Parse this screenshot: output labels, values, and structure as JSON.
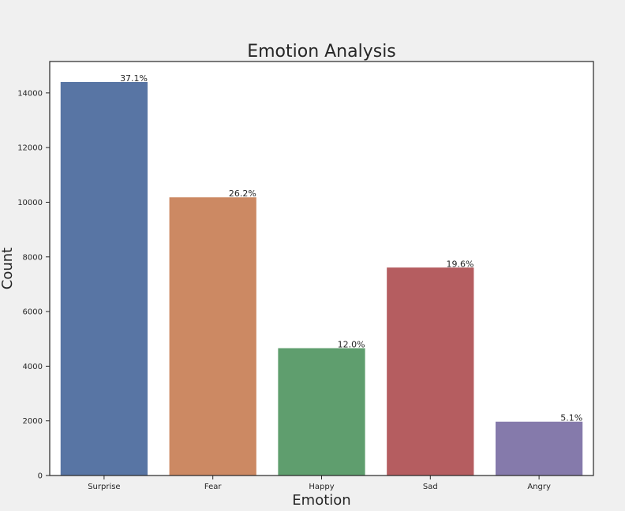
{
  "chart_data": {
    "type": "bar",
    "title": "Emotion Analysis",
    "xlabel": "Emotion",
    "ylabel": "Count",
    "categories": [
      "Surprise",
      "Fear",
      "Happy",
      "Sad",
      "Angry"
    ],
    "values": [
      14400,
      10180,
      4660,
      7610,
      1970
    ],
    "percent_labels": [
      "37.1%",
      "26.2%",
      "12.0%",
      "19.6%",
      "5.1%"
    ],
    "colors": [
      "#5875a4",
      "#cc8963",
      "#5f9e6e",
      "#b55d60",
      "#857aab"
    ],
    "ylim": [
      0,
      15150
    ],
    "yticks": [
      0,
      2000,
      4000,
      6000,
      8000,
      10000,
      12000,
      14000
    ],
    "grid": false,
    "legend": "none"
  }
}
